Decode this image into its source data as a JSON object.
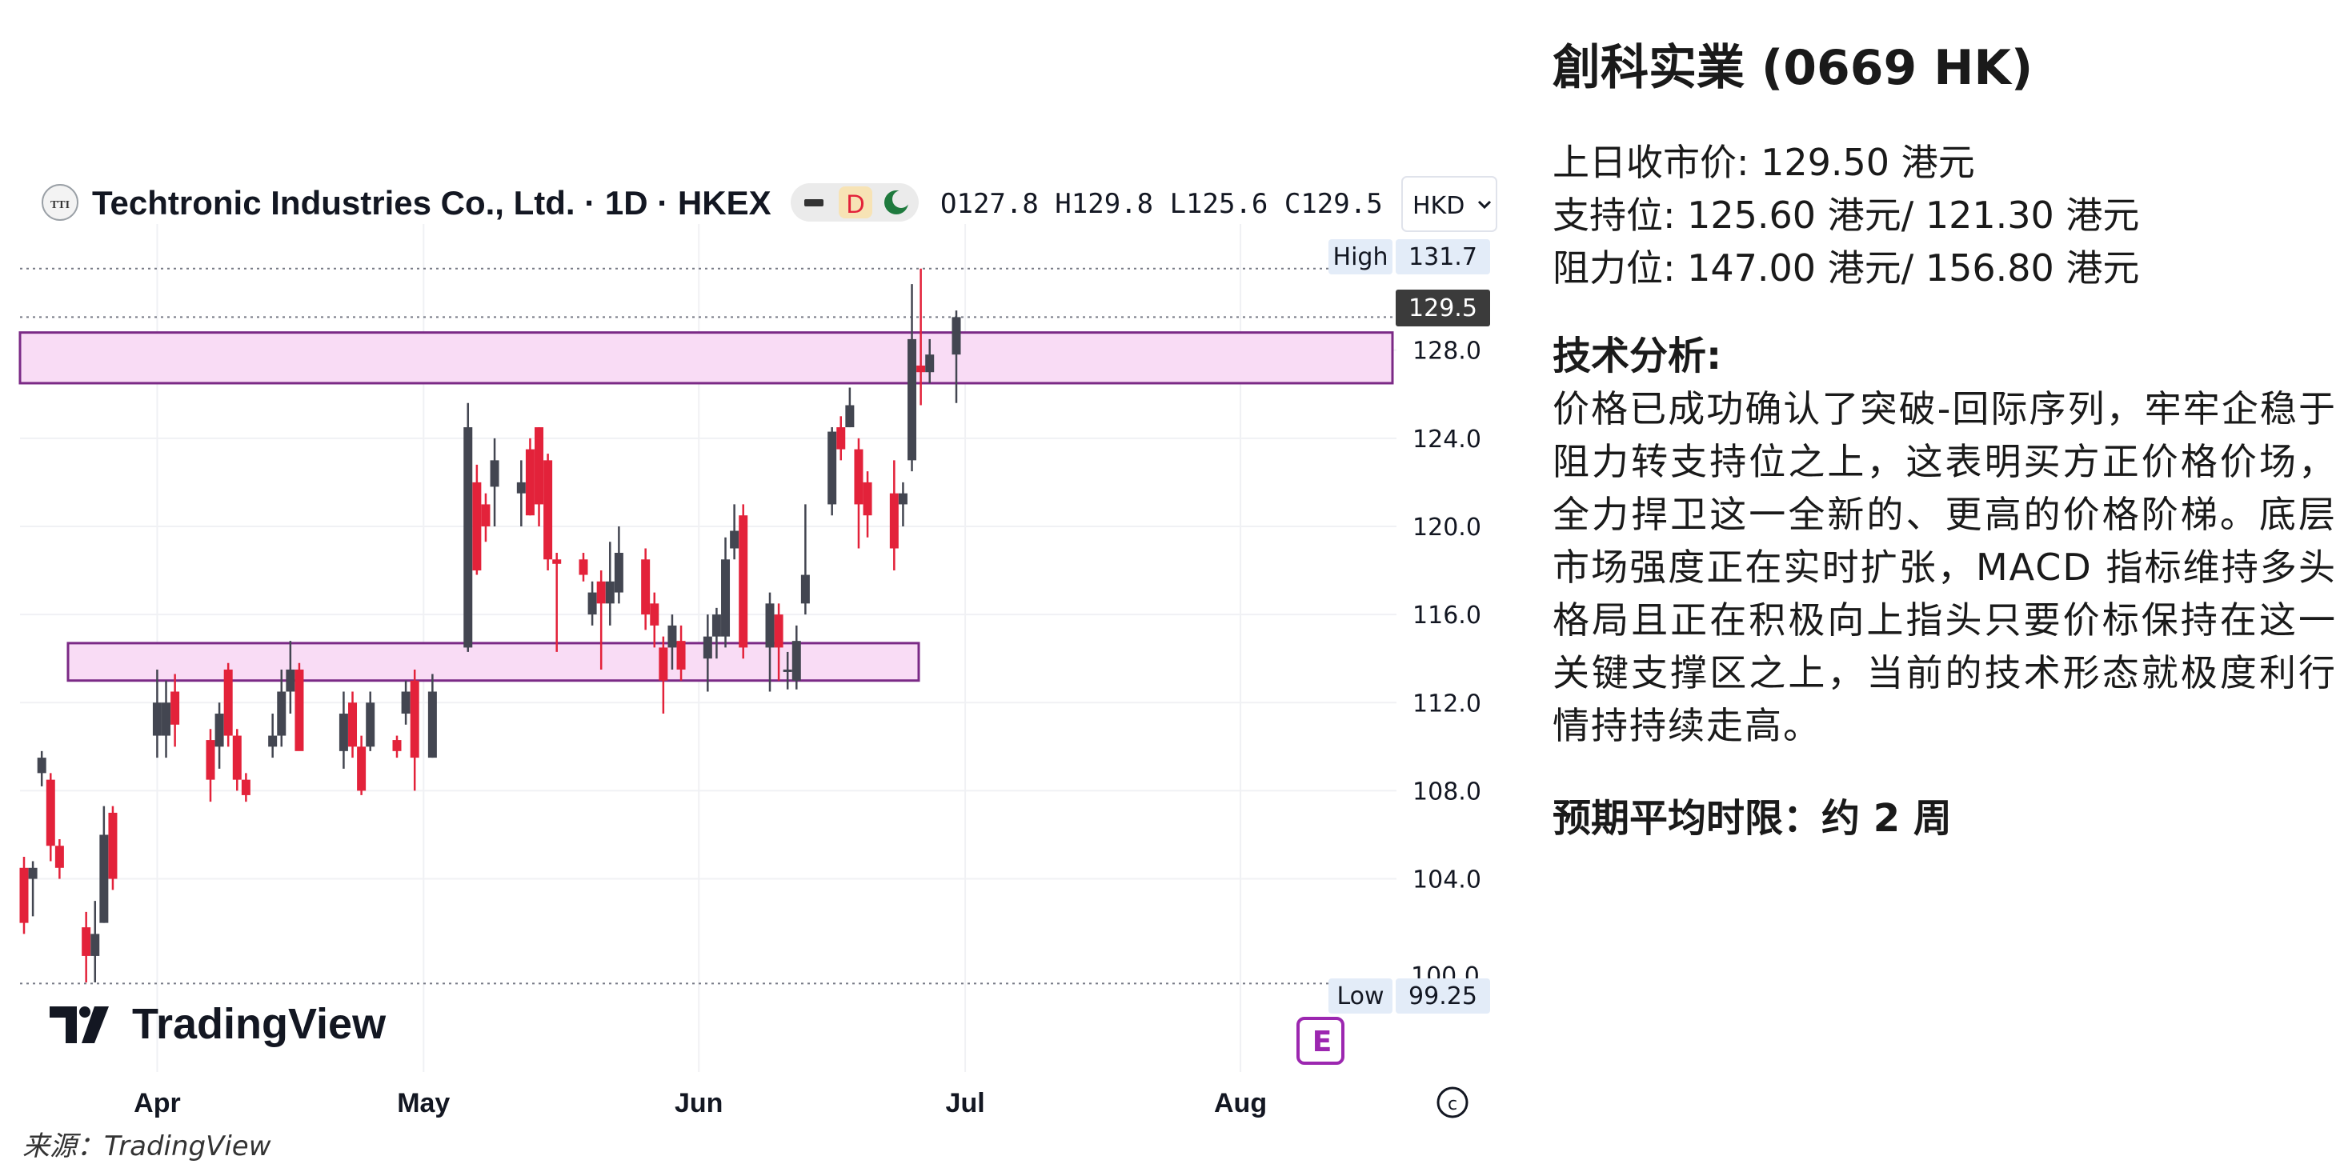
{
  "header": {
    "symbol_logo": "TTI",
    "title": "Techtronic Industries Co., Ltd. · 1D · HKEX",
    "flag_d": "D",
    "ohlc": "O127.8  H129.8  L125.6  C129.5",
    "currency": "HKD"
  },
  "watermark": "TradingView",
  "source_note": "来源：TradingView",
  "labels": {
    "high": "High",
    "high_value": "131.7",
    "last_value": "129.5",
    "low": "Low",
    "low_value": "99.25",
    "partial_tick": "100.0"
  },
  "icons": {
    "minus": "minus-icon",
    "moon": "moon-icon",
    "earnings": "earnings-icon",
    "settings": "copyright-icon"
  },
  "colors": {
    "up": "#434651",
    "down": "#e3223a",
    "zone_fill": "#f9dcf5",
    "zone_border": "#7b2a86",
    "last_price_bg": "#3b3b3b"
  },
  "chart_data": {
    "type": "candlestick",
    "title": "Techtronic Industries Co., Ltd. · 1D · HKEX",
    "ylim": [
      98.5,
      133
    ],
    "y_ticks": [
      128.0,
      124.0,
      120.0,
      116.0,
      112.0,
      108.0,
      104.0
    ],
    "x_ticks": [
      "Apr",
      "May",
      "Jun",
      "Jul",
      "Aug"
    ],
    "resistance_zone": [
      126.5,
      128.8
    ],
    "support_zone": [
      113.0,
      114.7
    ],
    "high": 131.7,
    "low": 99.25,
    "last": 129.5,
    "candles": [
      {
        "date": "03-17",
        "o": 104.5,
        "h": 105.0,
        "l": 101.5,
        "c": 102.0
      },
      {
        "date": "03-18",
        "o": 104.0,
        "h": 104.8,
        "l": 102.3,
        "c": 104.5
      },
      {
        "date": "03-19",
        "o": 108.8,
        "h": 109.8,
        "l": 108.2,
        "c": 109.5
      },
      {
        "date": "03-20",
        "o": 108.5,
        "h": 108.8,
        "l": 104.8,
        "c": 105.5
      },
      {
        "date": "03-21",
        "o": 105.5,
        "h": 105.8,
        "l": 104.0,
        "c": 104.5
      },
      {
        "date": "03-24",
        "o": 101.8,
        "h": 102.5,
        "l": 99.3,
        "c": 100.5
      },
      {
        "date": "03-25",
        "o": 100.5,
        "h": 103.0,
        "l": 99.3,
        "c": 101.5
      },
      {
        "date": "03-26",
        "o": 102.0,
        "h": 107.3,
        "l": 102.0,
        "c": 106.0
      },
      {
        "date": "03-27",
        "o": 107.0,
        "h": 107.3,
        "l": 103.5,
        "c": 104.0
      },
      {
        "date": "04-01",
        "o": 110.5,
        "h": 113.5,
        "l": 109.5,
        "c": 112.0
      },
      {
        "date": "04-02",
        "o": 110.5,
        "h": 113.0,
        "l": 109.5,
        "c": 112.0
      },
      {
        "date": "04-03",
        "o": 112.5,
        "h": 113.3,
        "l": 110.0,
        "c": 111.0
      },
      {
        "date": "04-07",
        "o": 110.3,
        "h": 110.8,
        "l": 107.5,
        "c": 108.5
      },
      {
        "date": "04-08",
        "o": 110.0,
        "h": 112.0,
        "l": 109.0,
        "c": 111.5
      },
      {
        "date": "04-09",
        "o": 113.5,
        "h": 113.8,
        "l": 110.0,
        "c": 110.5
      },
      {
        "date": "04-10",
        "o": 110.5,
        "h": 110.8,
        "l": 108.0,
        "c": 108.5
      },
      {
        "date": "04-11",
        "o": 108.5,
        "h": 108.8,
        "l": 107.5,
        "c": 107.8
      },
      {
        "date": "04-14",
        "o": 110.0,
        "h": 111.5,
        "l": 109.5,
        "c": 110.5
      },
      {
        "date": "04-15",
        "o": 110.5,
        "h": 113.5,
        "l": 110.0,
        "c": 112.5
      },
      {
        "date": "04-16",
        "o": 112.5,
        "h": 114.8,
        "l": 111.5,
        "c": 113.5
      },
      {
        "date": "04-17",
        "o": 113.5,
        "h": 113.8,
        "l": 110.0,
        "c": 109.8
      },
      {
        "date": "04-22",
        "o": 109.8,
        "h": 112.5,
        "l": 109.0,
        "c": 111.5
      },
      {
        "date": "04-23",
        "o": 112.0,
        "h": 112.5,
        "l": 109.5,
        "c": 110.0
      },
      {
        "date": "04-24",
        "o": 110.0,
        "h": 110.5,
        "l": 107.8,
        "c": 108.0
      },
      {
        "date": "04-25",
        "o": 110.0,
        "h": 112.5,
        "l": 109.8,
        "c": 112.0
      },
      {
        "date": "04-28",
        "o": 110.3,
        "h": 110.5,
        "l": 109.5,
        "c": 109.8
      },
      {
        "date": "04-29",
        "o": 111.5,
        "h": 113.0,
        "l": 111.0,
        "c": 112.5
      },
      {
        "date": "04-30",
        "o": 113.0,
        "h": 113.5,
        "l": 108.0,
        "c": 109.5
      },
      {
        "date": "05-02",
        "o": 109.5,
        "h": 113.3,
        "l": 109.5,
        "c": 112.5
      },
      {
        "date": "05-06",
        "o": 114.5,
        "h": 125.6,
        "l": 114.3,
        "c": 124.5
      },
      {
        "date": "05-07",
        "o": 122.0,
        "h": 122.8,
        "l": 117.8,
        "c": 118.0
      },
      {
        "date": "05-08",
        "o": 121.0,
        "h": 121.5,
        "l": 119.3,
        "c": 120.0
      },
      {
        "date": "05-09",
        "o": 121.8,
        "h": 124.0,
        "l": 120.0,
        "c": 123.0
      },
      {
        "date": "05-12",
        "o": 121.5,
        "h": 123.0,
        "l": 120.0,
        "c": 122.0
      },
      {
        "date": "05-13",
        "o": 123.5,
        "h": 124.0,
        "l": 120.5,
        "c": 120.5
      },
      {
        "date": "05-14",
        "o": 124.5,
        "h": 124.5,
        "l": 120.0,
        "c": 121.0
      },
      {
        "date": "05-15",
        "o": 123.0,
        "h": 123.3,
        "l": 118.0,
        "c": 118.5
      },
      {
        "date": "05-16",
        "o": 118.5,
        "h": 118.8,
        "l": 114.3,
        "c": 118.3
      },
      {
        "date": "05-19",
        "o": 118.5,
        "h": 118.8,
        "l": 117.5,
        "c": 117.8
      },
      {
        "date": "05-20",
        "o": 116.0,
        "h": 117.5,
        "l": 115.5,
        "c": 117.0
      },
      {
        "date": "05-21",
        "o": 117.5,
        "h": 118.0,
        "l": 113.5,
        "c": 116.5
      },
      {
        "date": "05-22",
        "o": 116.5,
        "h": 119.3,
        "l": 115.5,
        "c": 117.5
      },
      {
        "date": "05-23",
        "o": 117.0,
        "h": 120.0,
        "l": 116.5,
        "c": 118.8
      },
      {
        "date": "05-26",
        "o": 118.5,
        "h": 119.0,
        "l": 115.3,
        "c": 116.0
      },
      {
        "date": "05-27",
        "o": 116.5,
        "h": 117.0,
        "l": 114.5,
        "c": 115.5
      },
      {
        "date": "05-28",
        "o": 114.5,
        "h": 115.0,
        "l": 111.5,
        "c": 113.0
      },
      {
        "date": "05-29",
        "o": 114.5,
        "h": 116.0,
        "l": 113.5,
        "c": 115.5
      },
      {
        "date": "05-30",
        "o": 114.8,
        "h": 115.5,
        "l": 113.0,
        "c": 113.5
      },
      {
        "date": "06-02",
        "o": 114.0,
        "h": 116.0,
        "l": 112.5,
        "c": 115.0
      },
      {
        "date": "06-03",
        "o": 115.0,
        "h": 116.3,
        "l": 114.0,
        "c": 116.0
      },
      {
        "date": "06-04",
        "o": 115.0,
        "h": 119.5,
        "l": 114.5,
        "c": 118.5
      },
      {
        "date": "06-05",
        "o": 119.0,
        "h": 121.0,
        "l": 118.5,
        "c": 119.8
      },
      {
        "date": "06-06",
        "o": 120.5,
        "h": 121.0,
        "l": 114.0,
        "c": 114.5
      },
      {
        "date": "06-09",
        "o": 114.5,
        "h": 117.0,
        "l": 112.5,
        "c": 116.5
      },
      {
        "date": "06-10",
        "o": 116.0,
        "h": 116.5,
        "l": 113.0,
        "c": 114.5
      },
      {
        "date": "06-11",
        "o": 113.5,
        "h": 114.3,
        "l": 112.6,
        "c": 113.5
      },
      {
        "date": "06-12",
        "o": 113.0,
        "h": 115.5,
        "l": 112.6,
        "c": 114.8
      },
      {
        "date": "06-13",
        "o": 116.5,
        "h": 121.0,
        "l": 116.0,
        "c": 117.8
      },
      {
        "date": "06-16",
        "o": 121.0,
        "h": 124.5,
        "l": 120.5,
        "c": 124.3
      },
      {
        "date": "06-17",
        "o": 124.5,
        "h": 125.0,
        "l": 123.0,
        "c": 123.5
      },
      {
        "date": "06-18",
        "o": 124.5,
        "h": 126.3,
        "l": 124.5,
        "c": 125.5
      },
      {
        "date": "06-19",
        "o": 123.5,
        "h": 124.0,
        "l": 119.0,
        "c": 121.0
      },
      {
        "date": "06-20",
        "o": 122.0,
        "h": 122.5,
        "l": 119.5,
        "c": 120.5
      },
      {
        "date": "06-23",
        "o": 121.5,
        "h": 123.0,
        "l": 118.0,
        "c": 119.0
      },
      {
        "date": "06-24",
        "o": 121.0,
        "h": 122.0,
        "l": 120.0,
        "c": 121.5
      },
      {
        "date": "06-25",
        "o": 123.0,
        "h": 131.0,
        "l": 122.5,
        "c": 128.5
      },
      {
        "date": "06-26",
        "o": 127.3,
        "h": 131.7,
        "l": 125.5,
        "c": 127.0
      },
      {
        "date": "06-27",
        "o": 127.0,
        "h": 128.5,
        "l": 126.5,
        "c": 127.8
      },
      {
        "date": "06-30",
        "o": 127.8,
        "h": 129.8,
        "l": 125.6,
        "c": 129.5
      }
    ]
  },
  "panel": {
    "stock_title": "創科实業 (0669 HK)",
    "prev_close": "上日收市价: 129.50 港元",
    "support": "支持位: 125.60 港元/ 121.30 港元",
    "resistance": "阻力位: 147.00 港元/ 156.80 港元",
    "ta_heading": "技术分析:",
    "ta_body": "价格已成功确认了突破-回际序列，牢牢企稳于阻力转支持位之上，这表明买方正价格价场，全力捍卫这一全新的、更高的价格阶梯。底层市场强度正在实时扩张，MACD 指标维持多头格局且正在积极向上指头只要价标保持在这一关键支撑区之上，当前的技术形态就极度利行情持持续走高。",
    "horizon": "预期平均时限：约 2 周"
  }
}
